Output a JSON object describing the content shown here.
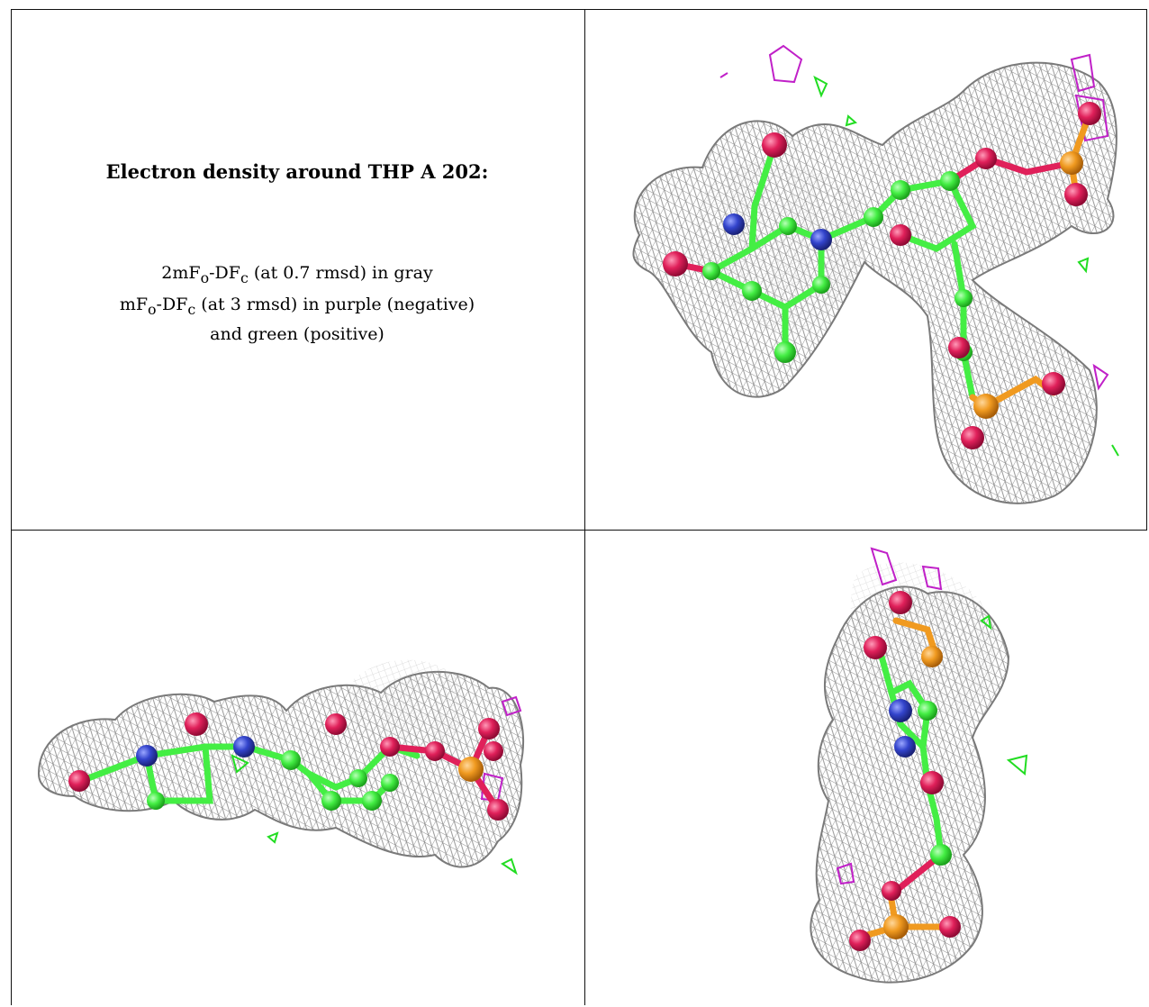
{
  "legend": {
    "title": "Electron density around THP A 202:",
    "line1_a": "2mF",
    "line1_sub1": "o",
    "line1_b": "-DF",
    "line1_sub2": "c",
    "line1_c": " (at 0.7 rmsd) in gray",
    "line2_a": "mF",
    "line2_sub1": "o",
    "line2_b": "-DF",
    "line2_sub2": "c",
    "line2_c": " (at 3 rmsd) in purple (negative)",
    "line3": "and green (positive)"
  },
  "colors": {
    "mesh_2fofc": "#9a9a9a",
    "mesh_negative": "#c020c8",
    "mesh_positive": "#22dd22",
    "carbon": "#44ee44",
    "nitrogen": "#3344cc",
    "oxygen": "#e0205a",
    "phosphorus": "#f09a20"
  },
  "panels": [
    {
      "name": "view-top-right"
    },
    {
      "name": "view-bottom-left"
    },
    {
      "name": "view-bottom-right"
    }
  ]
}
